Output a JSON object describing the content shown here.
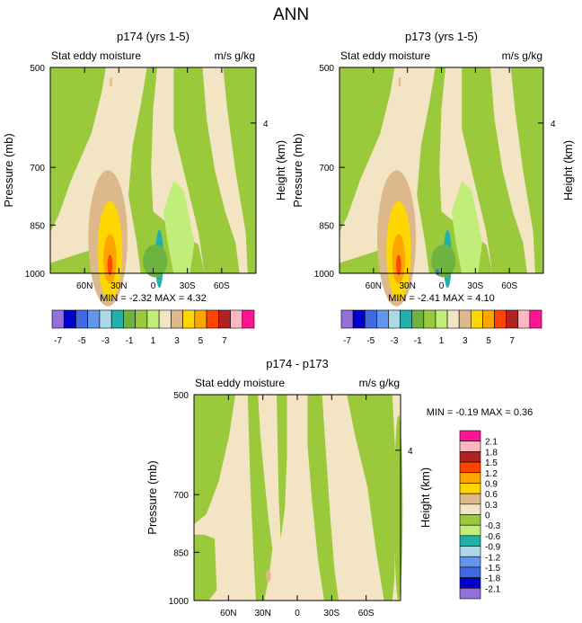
{
  "figure": {
    "title": "ANN"
  },
  "chart_data": [
    {
      "type": "heatmap",
      "id": "p174",
      "title": "p174 (yrs 1-5)",
      "left_label": "Stat eddy moisture",
      "right_label": "m/s g/kg",
      "ylabel": "Pressure (mb)",
      "ylabel_right": "Height (km)",
      "y_ticks": [
        "500",
        "700",
        "850",
        "1000"
      ],
      "y_tick_values": [
        500,
        700,
        850,
        1000
      ],
      "y_right_ticks": [
        "4"
      ],
      "x_ticks": [
        "60N",
        "30N",
        "0",
        "30S",
        "60S"
      ],
      "x_tick_values": [
        60,
        30,
        0,
        -30,
        -60
      ],
      "xlim": [
        90,
        -90
      ],
      "ylim": [
        500,
        1000
      ],
      "stats_text": "MIN = -2.32  MAX = 4.32",
      "min": -2.32,
      "max": 4.32
    },
    {
      "type": "heatmap",
      "id": "p173",
      "title": "p173 (yrs 1-5)",
      "left_label": "Stat eddy moisture",
      "right_label": "m/s g/kg",
      "ylabel": "Pressure (mb)",
      "ylabel_right": "Height (km)",
      "y_ticks": [
        "500",
        "700",
        "850",
        "1000"
      ],
      "y_tick_values": [
        500,
        700,
        850,
        1000
      ],
      "y_right_ticks": [
        "4"
      ],
      "x_ticks": [
        "60N",
        "30N",
        "0",
        "30S",
        "60S"
      ],
      "x_tick_values": [
        60,
        30,
        0,
        -30,
        -60
      ],
      "xlim": [
        90,
        -90
      ],
      "ylim": [
        500,
        1000
      ],
      "stats_text": "MIN = -2.41  MAX = 4.10",
      "min": -2.41,
      "max": 4.1
    },
    {
      "type": "heatmap",
      "id": "diff",
      "title": "p174 - p173",
      "left_label": "Stat eddy moisture",
      "right_label": "m/s g/kg",
      "ylabel": "Pressure (mb)",
      "ylabel_right": "Height (km)",
      "y_ticks": [
        "500",
        "700",
        "850",
        "1000"
      ],
      "y_tick_values": [
        500,
        700,
        850,
        1000
      ],
      "y_right_ticks": [
        "4"
      ],
      "x_ticks": [
        "60N",
        "30N",
        "0",
        "30S",
        "60S"
      ],
      "x_tick_values": [
        60,
        30,
        0,
        -30,
        -60
      ],
      "xlim": [
        90,
        -90
      ],
      "ylim": [
        500,
        1000
      ],
      "stats_text": "MIN = -0.19  MAX =  0.36",
      "min": -0.19,
      "max": 0.36
    }
  ],
  "colorbars": {
    "main": {
      "orientation": "horizontal",
      "colors": [
        "#9370db",
        "#0000cd",
        "#4169e1",
        "#6495ed",
        "#add8e6",
        "#20b2aa",
        "#6db33f",
        "#9aca3c",
        "#c0ee78",
        "#f3e4c3",
        "#ddb88a",
        "#ffd700",
        "#ffa500",
        "#ff4500",
        "#b22222",
        "#ffb6c1",
        "#ff1493"
      ],
      "labels": [
        "-7",
        "-5",
        "-3",
        "-1",
        "1",
        "3",
        "5",
        "7"
      ]
    },
    "diff": {
      "orientation": "vertical",
      "colors": [
        "#ff1493",
        "#ffb6c1",
        "#b22222",
        "#ff4500",
        "#ffa500",
        "#ffd700",
        "#ddb88a",
        "#f3e4c3",
        "#9aca3c",
        "#c0ee78",
        "#20b2aa",
        "#add8e6",
        "#6495ed",
        "#4169e1",
        "#0000cd",
        "#9370db"
      ],
      "labels": [
        "2.1",
        "1.8",
        "1.5",
        "1.2",
        "0.9",
        "0.6",
        "0.3",
        "0",
        "-0.3",
        "-0.6",
        "-0.9",
        "-1.2",
        "-1.5",
        "-1.8",
        "-2.1"
      ]
    }
  },
  "colors": {
    "cream": "#f3e4c3",
    "olive": "#9aca3c",
    "lightgreen": "#c0ee78",
    "tan": "#ddb88a",
    "yellow": "#ffd700",
    "orange": "#ffa500",
    "red": "#ff4500",
    "teal": "#20b2aa",
    "green": "#6db33f",
    "blue": "#4169e1"
  }
}
